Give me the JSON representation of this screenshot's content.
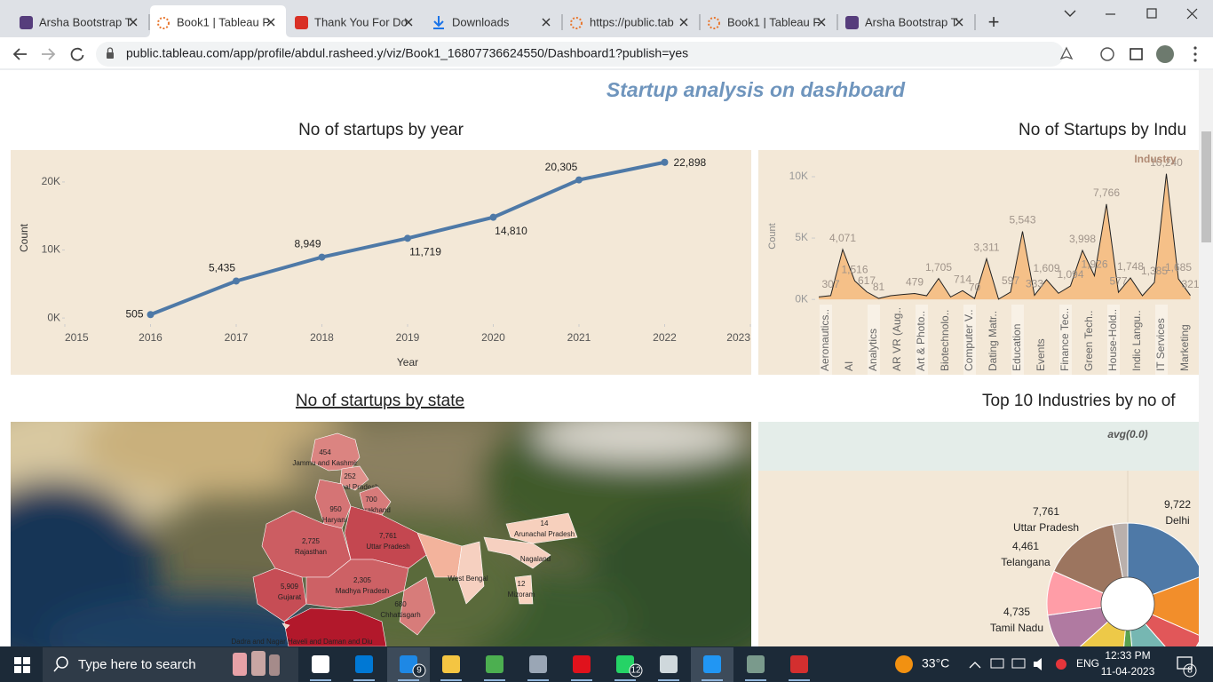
{
  "browser": {
    "tabs": [
      "Arsha Bootstrap T",
      "Book1 | Tableau P",
      "Thank You For Do",
      "Downloads",
      "https://public.tab",
      "Book1 | Tableau F",
      "Arsha Bootstrap T"
    ],
    "url": "public.tableau.com/app/profile/abdul.rasheed.y/viz/Book1_16807736624550/Dashboard1?publish=yes"
  },
  "dashboard": {
    "title": "Startup analysis on dashboard"
  },
  "chart_data": [
    {
      "type": "line",
      "title": "No of startups by year",
      "x_label": "Year",
      "y_label": "Count",
      "x": [
        2016,
        2017,
        2018,
        2019,
        2020,
        2021,
        2022
      ],
      "values": [
        505,
        5435,
        8949,
        11719,
        14810,
        20305,
        22898
      ],
      "value_labels": [
        "505",
        "5,435",
        "8,949",
        "11,719",
        "14,810",
        "20,305",
        "22,898"
      ],
      "color": "#4e79a7",
      "xlim": [
        2015,
        2023
      ],
      "xticks": [
        2015,
        2016,
        2017,
        2018,
        2019,
        2020,
        2021,
        2022,
        2023
      ],
      "ylim": [
        -900,
        24300
      ],
      "yticks": [
        {
          "value": 0,
          "label": "0K"
        },
        {
          "value": 10000,
          "label": "10K"
        },
        {
          "value": 20000,
          "label": "20K"
        }
      ]
    },
    {
      "type": "area",
      "title": "No of Startups by Indu",
      "legend_title": "Industry",
      "y_label": "Count",
      "categories": [
        "Aeronautics..",
        null,
        "AI",
        null,
        "Analytics",
        null,
        "AR VR (Aug..",
        null,
        "Art & Photo..",
        null,
        "Biotechnolo..",
        null,
        "Computer V..",
        null,
        "Dating Matr..",
        null,
        "Education",
        null,
        "Events",
        null,
        "Finance Tec..",
        null,
        "Green Tech..",
        null,
        "House-Hold..",
        null,
        "Indic Langu..",
        null,
        "IT Services",
        null,
        "Marketing",
        null
      ],
      "values": [
        200,
        307,
        4071,
        1516,
        617,
        81,
        300,
        400,
        479,
        300,
        1705,
        200,
        714,
        70,
        3311,
        20,
        597,
        5543,
        333,
        1609,
        500,
        1094,
        3998,
        1926,
        7766,
        577,
        1748,
        300,
        1385,
        10240,
        1685,
        321
      ],
      "value_labels": [
        null,
        "307",
        "4,071",
        "1,516",
        "617",
        "81",
        null,
        null,
        "479",
        null,
        "1,705",
        null,
        "714",
        "70",
        "3,311",
        null,
        "597",
        "5,543",
        "333",
        "1,609",
        null,
        "1,094",
        "3,998",
        "1,926",
        "7,766",
        "577",
        "1,748",
        null,
        "1,385",
        "10,240",
        "1,685",
        "321"
      ],
      "color": "#f5b97a",
      "line_color": "#222222",
      "ylim": [
        -350,
        10650
      ],
      "yticks": [
        {
          "value": 0,
          "label": "0K"
        },
        {
          "value": 5000,
          "label": "5K"
        },
        {
          "value": 10000,
          "label": "10K"
        }
      ]
    },
    {
      "type": "map",
      "title": "No of startups by state",
      "categories": [
        "Jammu and Kashmir",
        "Himachal Pradesh",
        "Uttarakhand",
        "Haryana",
        "Rajasthan",
        "Uttar Pradesh",
        "Gujarat",
        "Madhya Pradesh",
        "Chhattisgarh",
        "West Bengal",
        "Arunachal Pradesh",
        "Nagaland",
        "Mizoram",
        "Dadra and Nagar Haveli and Daman and Diu"
      ],
      "values": [
        454,
        252,
        700,
        950,
        2725,
        7761,
        5909,
        2305,
        680,
        null,
        14,
        null,
        12,
        null
      ],
      "value_labels": [
        "454",
        "252",
        "700",
        "950",
        "2,725",
        "7,761",
        "5,909",
        "2,305",
        "680",
        null,
        "14",
        null,
        "12",
        null
      ],
      "colors": [
        "#f8d3c0",
        "#b2182b"
      ]
    },
    {
      "type": "pie",
      "title": "Top 10 Industries by no of",
      "header": "avg(0.0)",
      "categories": [
        "Delhi",
        null,
        null,
        null,
        null,
        null,
        "Tamil Nadu",
        "Telangana",
        "Uttar Pradesh",
        null
      ],
      "values": [
        9722,
        6200,
        3500,
        5000,
        1500,
        6000,
        4735,
        4461,
        7761,
        1500
      ],
      "value_labels": [
        "9,722",
        null,
        null,
        null,
        null,
        null,
        "4,735",
        "4,461",
        "7,761",
        null
      ],
      "colors": [
        "#4e79a7",
        "#f28e2b",
        "#e15759",
        "#76b7b2",
        "#59a14f",
        "#edc948",
        "#b07aa1",
        "#ff9da7",
        "#9c755f",
        "#bab0ac"
      ]
    }
  ],
  "taskbar": {
    "search": "Type here to search",
    "weather": "33°C",
    "language": "ENG",
    "time": "12:33 PM",
    "date": "11-04-2023",
    "badges": [
      9,
      12,
      8
    ]
  }
}
